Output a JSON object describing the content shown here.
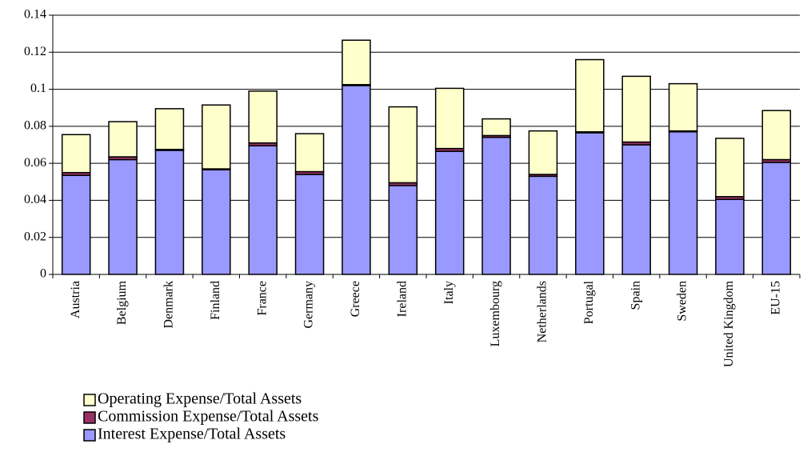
{
  "chart_data": {
    "type": "stacked-bar",
    "categories": [
      "Austria",
      "Belgium",
      "Denmark",
      "Finland",
      "France",
      "Germany",
      "Greece",
      "Ireland",
      "Italy",
      "Luxembourg",
      "Netherlands",
      "Portugal",
      "Spain",
      "Sweden",
      "United Kingdom",
      "EU-15"
    ],
    "series": [
      {
        "name": "Operating Expense/Total Assets",
        "color": "#ffffcc",
        "values": [
          0.0205,
          0.019,
          0.022,
          0.0345,
          0.028,
          0.0205,
          0.024,
          0.041,
          0.0325,
          0.009,
          0.0235,
          0.039,
          0.0355,
          0.0255,
          0.0315,
          0.0265
        ]
      },
      {
        "name": "Commission Expense/Total Assets",
        "color": "#993366",
        "values": [
          0.0015,
          0.0015,
          0.0005,
          0.0005,
          0.0015,
          0.0015,
          0.0005,
          0.0015,
          0.0015,
          0.001,
          0.001,
          0.0005,
          0.0015,
          0.0005,
          0.0015,
          0.0015
        ]
      },
      {
        "name": "Interest Expense/Total Assets",
        "color": "#9999ff",
        "values": [
          0.0535,
          0.062,
          0.067,
          0.0565,
          0.0695,
          0.054,
          0.102,
          0.048,
          0.0665,
          0.074,
          0.053,
          0.0765,
          0.07,
          0.077,
          0.0405,
          0.0605
        ]
      }
    ],
    "ylim": [
      0,
      0.14
    ],
    "yticks": [
      0,
      0.02,
      0.04,
      0.06,
      0.08,
      0.1,
      0.12,
      0.14
    ],
    "grid": true
  }
}
